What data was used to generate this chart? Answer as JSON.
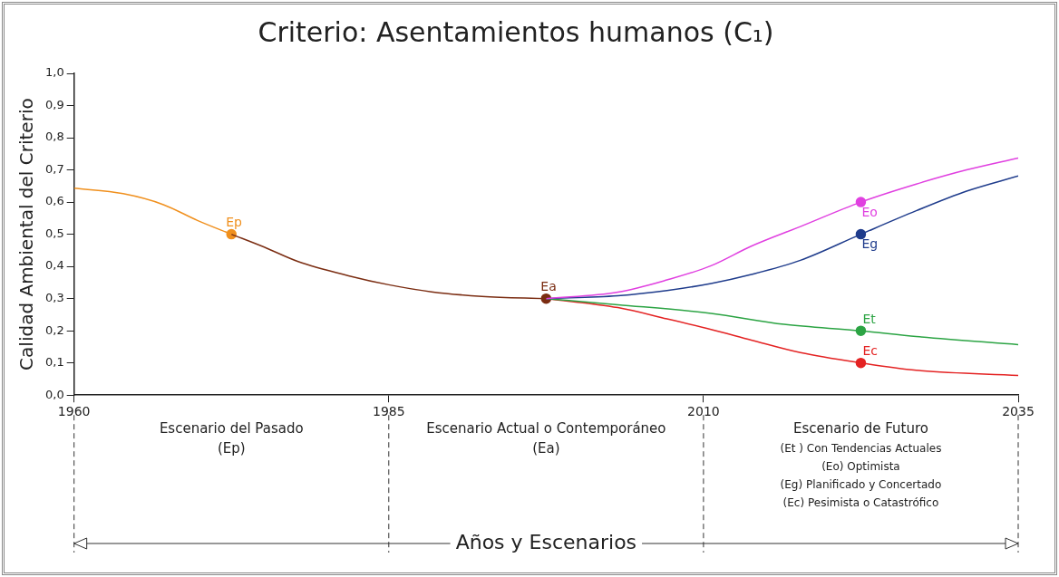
{
  "chart_data": {
    "type": "line",
    "title": "Criterio: Asentamientos humanos (C₁)",
    "ylabel": "Calidad Ambiental del Criterio",
    "xlim": [
      1960,
      2035
    ],
    "xticks": [
      1960,
      1985,
      2010,
      2035
    ],
    "ylim": [
      0,
      1
    ],
    "yticks": [
      {
        "value": 0,
        "label": "0,0"
      },
      {
        "value": 0.1,
        "label": "0,1"
      },
      {
        "value": 0.2,
        "label": "0,2"
      },
      {
        "value": 0.3,
        "label": "0,3"
      },
      {
        "value": 0.4,
        "label": "0,4"
      },
      {
        "value": 0.5,
        "label": "0,5"
      },
      {
        "value": 0.6,
        "label": "0,6"
      },
      {
        "value": 0.7,
        "label": "0,7"
      },
      {
        "value": 0.8,
        "label": "0,8"
      },
      {
        "value": 0.9,
        "label": "0,9"
      },
      {
        "value": 1,
        "label": "1,0"
      }
    ],
    "grid": false,
    "legend": false,
    "series": [
      {
        "marker": "none",
        "color": "#f0901e",
        "x": [
          1960,
          1963.9,
          1967.1,
          1969.8,
          1972.5
        ],
        "values": [
          0.643,
          0.626,
          0.592,
          0.543,
          0.5
        ]
      },
      {
        "marker": "none",
        "color": "#7b2d12",
        "x": [
          1972.5,
          1975.1,
          1977.8,
          1981.8,
          1985,
          1988.4,
          1992.4,
          1997.5
        ],
        "values": [
          0.5,
          0.46,
          0.415,
          0.371,
          0.343,
          0.321,
          0.307,
          0.3
        ]
      },
      {
        "marker": "none",
        "color": "#e040e0",
        "x": [
          1997.5,
          2003.2,
          2007.1,
          2010.6,
          2013.8,
          2017.7,
          2022.5,
          2026.9,
          2030.9,
          2035
        ],
        "values": [
          0.3,
          0.32,
          0.358,
          0.402,
          0.463,
          0.524,
          0.6,
          0.656,
          0.7,
          0.737
        ]
      },
      {
        "marker": "none",
        "color": "#1f3c8c",
        "x": [
          1997.5,
          2003.2,
          2007.1,
          2010.6,
          2013.8,
          2017.7,
          2022.5,
          2026.9,
          2030.9,
          2035
        ],
        "values": [
          0.3,
          0.309,
          0.325,
          0.347,
          0.375,
          0.419,
          0.5,
          0.573,
          0.634,
          0.681
        ]
      },
      {
        "marker": "none",
        "color": "#2ca444",
        "x": [
          1997.5,
          2003.2,
          2010.6,
          2016.4,
          2022.5,
          2026.9,
          2035
        ],
        "values": [
          0.3,
          0.281,
          0.254,
          0.22,
          0.2,
          0.182,
          0.157
        ]
      },
      {
        "marker": "none",
        "color": "#e42323",
        "x": [
          1997.5,
          2003.2,
          2007.1,
          2010.6,
          2013.8,
          2017.7,
          2022.5,
          2026.9,
          2035
        ],
        "values": [
          0.3,
          0.272,
          0.237,
          0.204,
          0.171,
          0.132,
          0.1,
          0.077,
          0.061
        ]
      },
      {
        "type": "scatter",
        "marker": "circle",
        "name": "Ep",
        "color": "#f0901e",
        "x": [
          1972.5
        ],
        "values": [
          0.5
        ]
      },
      {
        "type": "scatter",
        "marker": "circle",
        "name": "Ea",
        "color": "#7b2d12",
        "x": [
          1997.5
        ],
        "values": [
          0.3
        ]
      },
      {
        "type": "scatter",
        "marker": "circle",
        "name": "Eo",
        "color": "#e040e0",
        "x": [
          2022.5
        ],
        "values": [
          0.6
        ]
      },
      {
        "type": "scatter",
        "marker": "circle",
        "name": "Eg",
        "color": "#1f3c8c",
        "x": [
          2022.5
        ],
        "values": [
          0.5
        ]
      },
      {
        "type": "scatter",
        "marker": "circle",
        "name": "Et",
        "color": "#2ca444",
        "x": [
          2022.5
        ],
        "values": [
          0.2
        ]
      },
      {
        "type": "scatter",
        "marker": "circle",
        "name": "Ec",
        "color": "#e42323",
        "x": [
          2022.5
        ],
        "values": [
          0.1
        ]
      }
    ],
    "annotations": [
      "Escenario del Pasado\n(Ep)",
      "Escenario Actual o Contemporáneo\n(Ea)",
      "Escenario de Futuro\n(Et ) Con Tendencias Actuales\n(Eo) Optimista\n(Eg) Planificado y Concertado\n(Ec) Pesimista o Catastrófico",
      "Años y Escenarios"
    ]
  }
}
